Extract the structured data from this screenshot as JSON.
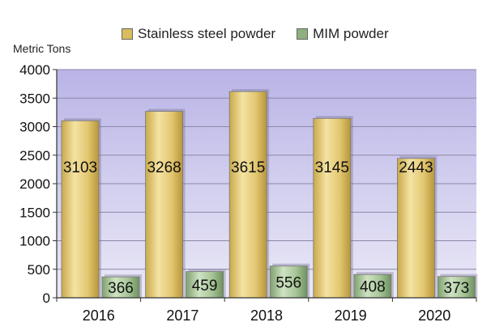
{
  "chart_data": {
    "type": "bar",
    "title": "",
    "xlabel": "",
    "ylabel": "Metric Tons",
    "ylim": [
      0,
      4000
    ],
    "yticks": [
      0,
      500,
      1000,
      1500,
      2000,
      2500,
      3000,
      3500,
      4000
    ],
    "categories": [
      "2016",
      "2017",
      "2018",
      "2019",
      "2020"
    ],
    "series": [
      {
        "name": "Stainless steel powder",
        "values": [
          3103,
          3268,
          3615,
          3145,
          2443
        ],
        "color": "#e6cf7c"
      },
      {
        "name": "MIM powder",
        "values": [
          366,
          459,
          556,
          408,
          373
        ],
        "color": "#a7c79a"
      }
    ],
    "legend_position": "top",
    "grid": true,
    "plot_background": "#c8c4ea",
    "data_labels": true
  }
}
